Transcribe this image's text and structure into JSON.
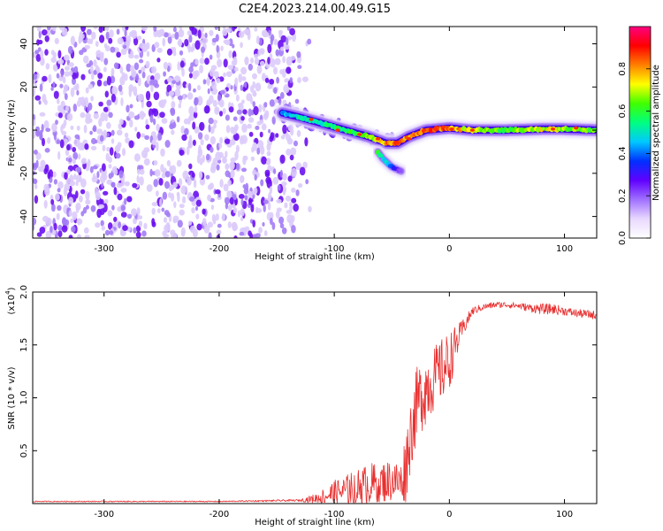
{
  "title": "C2E4.2023.214.00.49.G15",
  "chart_data": [
    {
      "type": "heatmap",
      "xlabel": "Height of straight line (km)",
      "ylabel": "Frequency (Hz)",
      "xlim": [
        -362,
        128
      ],
      "ylim": [
        -50,
        48
      ],
      "xticks": [
        -300,
        -200,
        -100,
        0,
        100
      ],
      "yticks": [
        -40,
        -20,
        0,
        20,
        40
      ],
      "colorbar": {
        "label": "Normalized spectral amplitude",
        "range": [
          0.0,
          1.0
        ],
        "ticks": [
          0.0,
          0.2,
          0.4,
          0.6,
          0.8
        ],
        "colormap": [
          "#ffffff",
          "#e8d8ff",
          "#a070ff",
          "#6000ff",
          "#0030ff",
          "#00c8ff",
          "#00ff80",
          "#40ff00",
          "#ffff00",
          "#ff8000",
          "#ff0000",
          "#ff0080"
        ]
      },
      "noise_region": {
        "x_from": -362,
        "x_to": -135,
        "freq_range": [
          -50,
          48
        ],
        "amplitude": 0.08
      },
      "signal_ridge": {
        "x": [
          -145,
          -130,
          -110,
          -90,
          -70,
          -55,
          -45,
          -35,
          -20,
          -10,
          0,
          20,
          50,
          80,
          100,
          128
        ],
        "freq": [
          8,
          6,
          3,
          0,
          -3,
          -6,
          -6,
          -3,
          0,
          0.5,
          1,
          0,
          0,
          0.5,
          0.5,
          0
        ],
        "amplitude": [
          0.45,
          0.55,
          0.55,
          0.6,
          0.7,
          0.85,
          0.9,
          0.85,
          0.9,
          0.9,
          0.85,
          0.75,
          0.65,
          0.75,
          0.7,
          0.65
        ]
      },
      "secondary_branch": {
        "x": [
          -62,
          -58,
          -54,
          -50,
          -46,
          -42
        ],
        "freq": [
          -10,
          -13,
          -15,
          -17,
          -18,
          -19
        ],
        "amplitude": [
          0.6,
          0.55,
          0.5,
          0.4,
          0.3,
          0.2
        ]
      }
    },
    {
      "type": "line",
      "xlabel": "Height of straight line (km)",
      "ylabel": "SNR (10 * v/v)",
      "y_multiplier": "(x10",
      "y_multiplier_exp": "4",
      "xlim": [
        -362,
        128
      ],
      "ylim": [
        0,
        2.0
      ],
      "xticks": [
        -300,
        -200,
        -100,
        0,
        100
      ],
      "yticks": [
        0.5,
        1.0,
        1.5,
        2.0
      ],
      "ytick_labels": [
        "0.5",
        "1.0",
        "1.5",
        "2.0"
      ],
      "color": "#e83030",
      "series": [
        {
          "x": [
            -362,
            -300,
            -200,
            -130,
            -115,
            -100,
            -90,
            -80,
            -70,
            -60,
            -50,
            -42,
            -38,
            -33,
            -28,
            -20,
            -12,
            -5,
            0,
            10,
            20,
            30,
            40,
            50,
            60,
            70,
            80,
            90,
            100,
            110,
            120,
            128
          ],
          "y": [
            0.02,
            0.02,
            0.02,
            0.03,
            0.05,
            0.1,
            0.12,
            0.15,
            0.18,
            0.2,
            0.22,
            0.2,
            0.35,
            0.7,
            0.95,
            1.1,
            1.2,
            1.28,
            1.35,
            1.62,
            1.82,
            1.86,
            1.88,
            1.88,
            1.87,
            1.85,
            1.84,
            1.84,
            1.82,
            1.8,
            1.79,
            1.78
          ],
          "noise_amplitude": [
            0.005,
            0.005,
            0.005,
            0.01,
            0.05,
            0.12,
            0.15,
            0.18,
            0.2,
            0.2,
            0.2,
            0.2,
            0.35,
            0.35,
            0.35,
            0.35,
            0.3,
            0.3,
            0.28,
            0.1,
            0.04,
            0.03,
            0.03,
            0.03,
            0.03,
            0.04,
            0.05,
            0.05,
            0.04,
            0.04,
            0.04,
            0.04
          ]
        }
      ]
    }
  ]
}
